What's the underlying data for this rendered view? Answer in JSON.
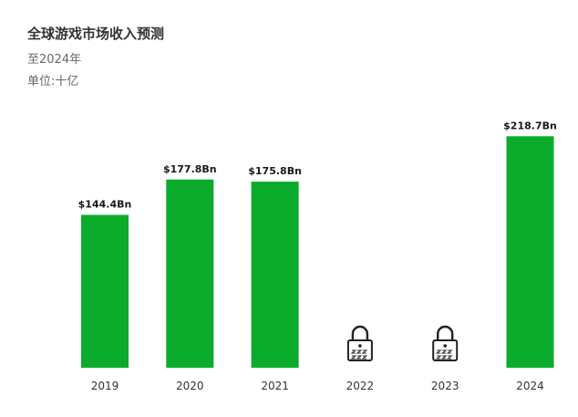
{
  "header": {
    "title": "全球游戏市场收入预测",
    "subtitle": "至2024年",
    "unit": "单位:十亿"
  },
  "chart_data": {
    "type": "bar",
    "title": "全球游戏市场收入预测",
    "subtitle": "至2024年",
    "ylabel": "单位:十亿",
    "xlabel": "",
    "categories": [
      "2019",
      "2020",
      "2021",
      "2022",
      "2023",
      "2024"
    ],
    "values": [
      144.4,
      177.8,
      175.8,
      null,
      null,
      218.7
    ],
    "data_labels": [
      "$144.4Bn",
      "$177.8Bn",
      "$175.8Bn",
      "",
      "",
      "$218.7Bn"
    ],
    "locked": [
      false,
      false,
      false,
      true,
      true,
      false
    ],
    "ylim": [
      0,
      225
    ],
    "grid": false,
    "bar_color": "#0bab2c",
    "locked_icon": "padlock-icon"
  }
}
